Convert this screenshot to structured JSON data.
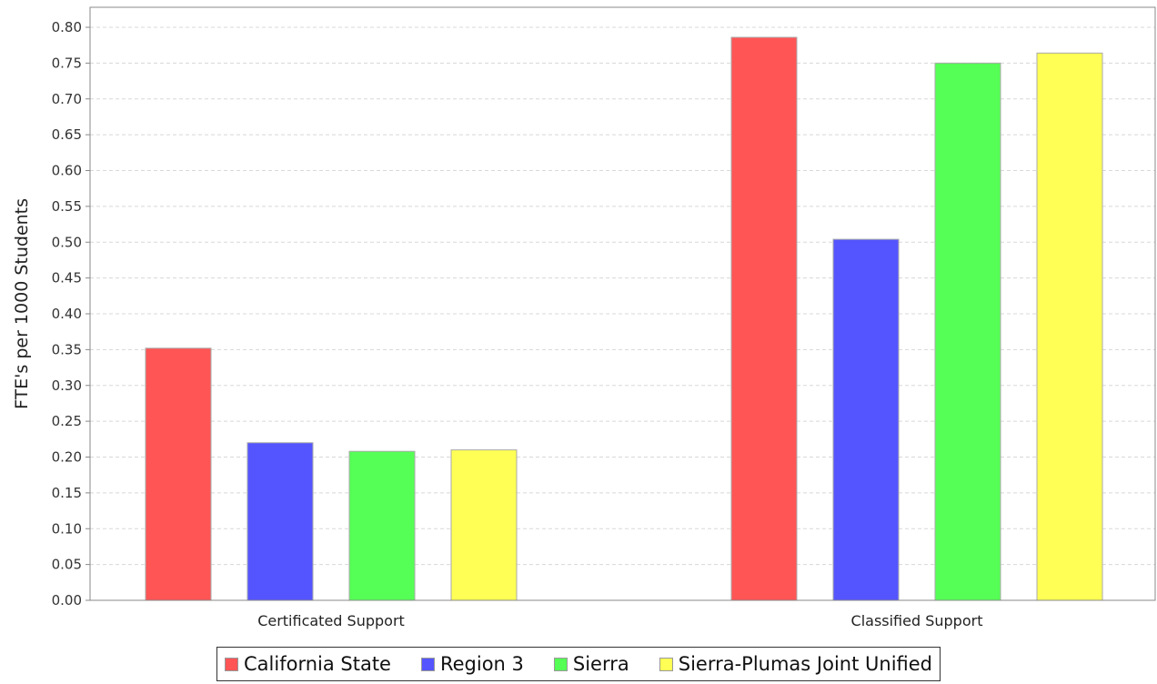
{
  "chart_data": {
    "type": "bar",
    "categories": [
      "Certificated Support",
      "Classified Support"
    ],
    "series": [
      {
        "name": "California State",
        "color": "#ff5555",
        "values": [
          0.352,
          0.786
        ]
      },
      {
        "name": "Region 3",
        "color": "#5555ff",
        "values": [
          0.22,
          0.504
        ]
      },
      {
        "name": "Sierra",
        "color": "#55ff55",
        "values": [
          0.208,
          0.75
        ]
      },
      {
        "name": "Sierra-Plumas Joint Unified",
        "color": "#ffff55",
        "values": [
          0.21,
          0.764
        ]
      }
    ],
    "title": "",
    "xlabel": "",
    "ylabel": "FTE's per 1000 Students",
    "ylim": [
      0,
      0.8
    ],
    "yticks": [
      "0.00",
      "0.05",
      "0.10",
      "0.15",
      "0.20",
      "0.25",
      "0.30",
      "0.35",
      "0.40",
      "0.45",
      "0.50",
      "0.55",
      "0.60",
      "0.65",
      "0.70",
      "0.75",
      "0.80"
    ],
    "grid": true,
    "legend_position": "bottom"
  }
}
